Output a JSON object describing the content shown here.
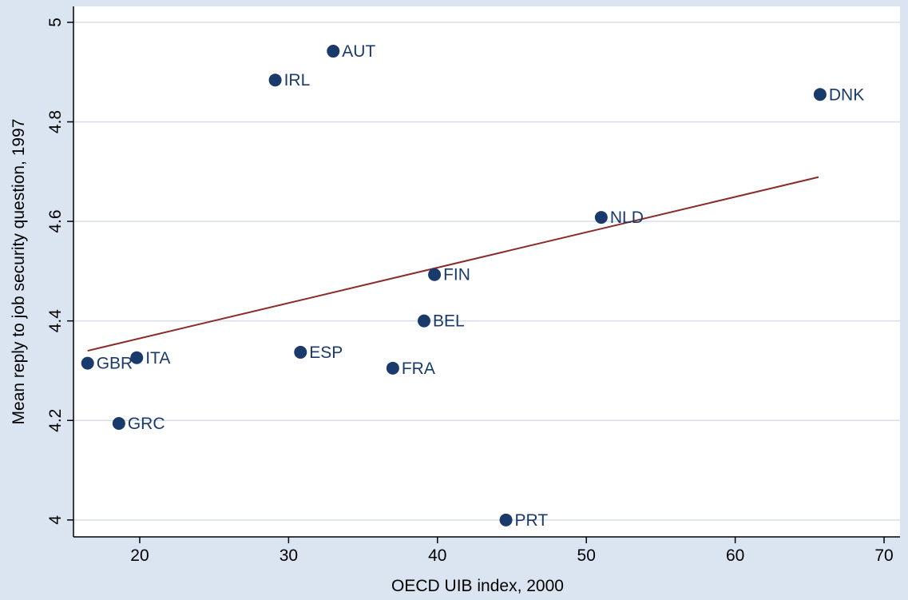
{
  "chart_data": {
    "type": "scatter",
    "x_label": "OECD UIB index, 2000",
    "y_label": "Mean reply to job security question, 1997",
    "labels": [
      "GBR",
      "ITA",
      "GRC",
      "ESP",
      "FRA",
      "BEL",
      "FIN",
      "NLD",
      "DNK",
      "AUT",
      "IRL",
      "PRT"
    ],
    "x": [
      16.5,
      19.8,
      18.6,
      30.8,
      37.0,
      39.1,
      39.8,
      51.0,
      65.7,
      33.0,
      29.1,
      44.6
    ],
    "y": [
      4.315,
      4.326,
      4.194,
      4.337,
      4.305,
      4.4,
      4.493,
      4.608,
      4.855,
      4.942,
      4.884,
      4.0
    ],
    "color": "#1a3a6b",
    "fit": {
      "x": [
        16.5,
        65.6
      ],
      "y": [
        4.34,
        4.689
      ],
      "color": "#8b2b2b"
    },
    "xlim": [
      15.55,
      71.07
    ],
    "ylim": [
      3.966,
      5.032
    ],
    "xticks": [
      20,
      30,
      40,
      50,
      60,
      70
    ],
    "yticks": [
      4,
      4.2,
      4.4,
      4.6,
      4.8,
      5
    ],
    "grid": true
  }
}
